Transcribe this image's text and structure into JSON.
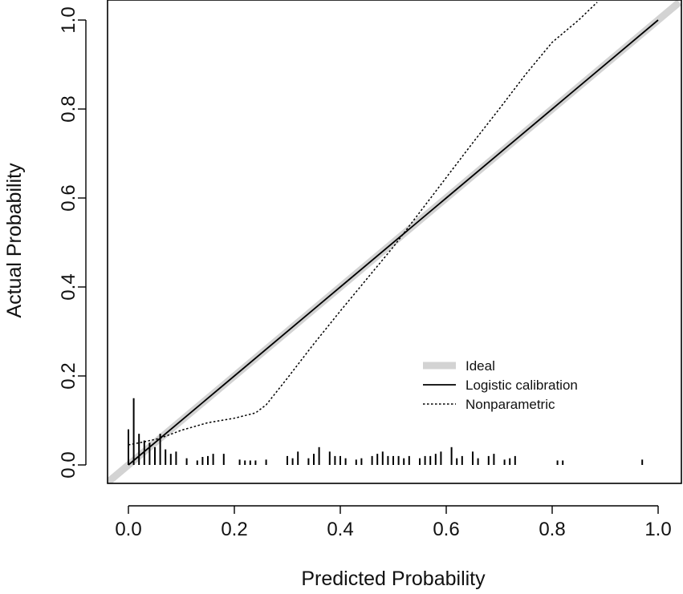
{
  "chart_data": {
    "type": "line",
    "title": "",
    "xlabel": "Predicted Probability",
    "ylabel": "Actual Probability",
    "xlim": [
      -0.04,
      1.04
    ],
    "ylim": [
      -0.04,
      1.04
    ],
    "x_ticks": [
      "0.0",
      "0.2",
      "0.4",
      "0.6",
      "0.8",
      "1.0"
    ],
    "y_ticks": [
      "0.0",
      "0.2",
      "0.4",
      "0.6",
      "0.8",
      "1.0"
    ],
    "x_tick_values": [
      0,
      0.2,
      0.4,
      0.6,
      0.8,
      1.0
    ],
    "y_tick_values": [
      0,
      0.2,
      0.4,
      0.6,
      0.8,
      1.0
    ],
    "grid": false,
    "legend_position": "lower-right",
    "series": [
      {
        "name": "Ideal",
        "style": "thick-light",
        "color": "#d3d3d3",
        "x": [
          -0.04,
          1.04
        ],
        "y": [
          -0.04,
          1.04
        ]
      },
      {
        "name": "Logistic calibration",
        "style": "solid",
        "color": "#000000",
        "x": [
          0.0,
          0.2,
          0.4,
          0.6,
          0.8,
          1.0
        ],
        "y": [
          0.0,
          0.2,
          0.4,
          0.6,
          0.8,
          1.0
        ]
      },
      {
        "name": "Nonparametric",
        "style": "dotted",
        "color": "#000000",
        "x": [
          0.0,
          0.03,
          0.06,
          0.1,
          0.15,
          0.2,
          0.24,
          0.26,
          0.3,
          0.35,
          0.4,
          0.45,
          0.5,
          0.55,
          0.6,
          0.65,
          0.7,
          0.75,
          0.8,
          0.85,
          0.885
        ],
        "y": [
          0.045,
          0.052,
          0.06,
          0.078,
          0.095,
          0.105,
          0.117,
          0.135,
          0.195,
          0.272,
          0.346,
          0.418,
          0.49,
          0.568,
          0.646,
          0.724,
          0.8,
          0.878,
          0.95,
          1.0,
          1.04
        ]
      }
    ],
    "rug": {
      "x": [
        0.0,
        0.01,
        0.02,
        0.03,
        0.04,
        0.05,
        0.06,
        0.07,
        0.08,
        0.09,
        0.11,
        0.13,
        0.14,
        0.15,
        0.16,
        0.18,
        0.21,
        0.22,
        0.23,
        0.24,
        0.26,
        0.3,
        0.31,
        0.32,
        0.34,
        0.35,
        0.36,
        0.38,
        0.39,
        0.4,
        0.41,
        0.43,
        0.44,
        0.46,
        0.47,
        0.48,
        0.49,
        0.5,
        0.51,
        0.52,
        0.53,
        0.55,
        0.56,
        0.57,
        0.58,
        0.59,
        0.61,
        0.62,
        0.63,
        0.65,
        0.66,
        0.68,
        0.69,
        0.71,
        0.72,
        0.73,
        0.81,
        0.82,
        0.97
      ],
      "heights": [
        0.08,
        0.15,
        0.07,
        0.055,
        0.05,
        0.04,
        0.07,
        0.035,
        0.025,
        0.03,
        0.015,
        0.01,
        0.018,
        0.02,
        0.025,
        0.025,
        0.012,
        0.01,
        0.01,
        0.01,
        0.012,
        0.02,
        0.015,
        0.03,
        0.015,
        0.025,
        0.04,
        0.03,
        0.02,
        0.02,
        0.015,
        0.012,
        0.015,
        0.02,
        0.025,
        0.03,
        0.02,
        0.02,
        0.02,
        0.015,
        0.02,
        0.015,
        0.02,
        0.02,
        0.025,
        0.03,
        0.04,
        0.015,
        0.02,
        0.03,
        0.015,
        0.02,
        0.025,
        0.012,
        0.015,
        0.02,
        0.01,
        0.01,
        0.012
      ]
    }
  }
}
